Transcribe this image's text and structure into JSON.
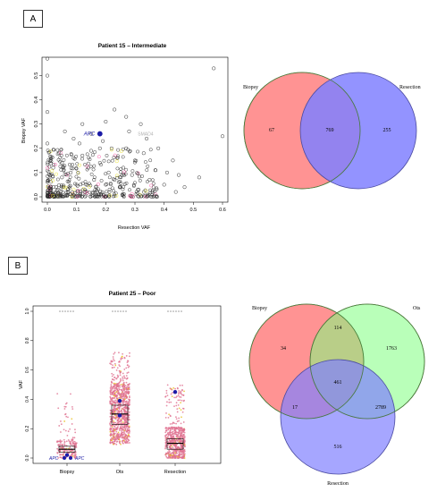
{
  "panels": [
    {
      "label": "A"
    },
    {
      "label": "B"
    }
  ],
  "chart_data": [
    {
      "type": "scatter",
      "title": "Patient 15 – Intermediate",
      "xlabel": "Resection VAF",
      "ylabel": "Biopsy VAF",
      "xlim": [
        0,
        0.6
      ],
      "ylim": [
        0,
        0.55
      ],
      "xticks": [
        "0.0",
        "0.1",
        "0.2",
        "0.3",
        "0.4",
        "0.5",
        "0.6"
      ],
      "yticks": [
        "0.0",
        "0.1",
        "0.2",
        "0.3",
        "0.4",
        "0.5"
      ],
      "annotations": [
        {
          "text": "APC",
          "x": 0.18,
          "y": 0.26,
          "color": "#1a1aa6"
        },
        {
          "text": "SMAD4",
          "x": 0.31,
          "y": 0.26,
          "color": "#b0b0b0"
        }
      ],
      "points": [
        [
          0.0,
          0.57
        ],
        [
          0.0,
          0.5
        ],
        [
          0.0,
          0.35
        ],
        [
          0.0,
          0.22
        ],
        [
          0.57,
          0.53
        ],
        [
          0.6,
          0.25
        ],
        [
          0.47,
          0.04
        ],
        [
          0.52,
          0.08
        ],
        [
          0.43,
          0.15
        ],
        [
          0.37,
          0.11
        ],
        [
          0.35,
          0.07
        ],
        [
          0.32,
          0.3
        ],
        [
          0.28,
          0.27
        ],
        [
          0.27,
          0.33
        ],
        [
          0.23,
          0.36
        ],
        [
          0.2,
          0.31
        ],
        [
          0.15,
          0.19
        ],
        [
          0.12,
          0.3
        ],
        [
          0.06,
          0.27
        ],
        [
          0.04,
          0.18
        ],
        [
          0.02,
          0.12
        ],
        [
          0.05,
          0.08
        ],
        [
          0.08,
          0.1
        ],
        [
          0.1,
          0.05
        ],
        [
          0.14,
          0.12
        ],
        [
          0.16,
          0.07
        ],
        [
          0.18,
          0.14
        ],
        [
          0.21,
          0.1
        ],
        [
          0.24,
          0.16
        ],
        [
          0.26,
          0.12
        ],
        [
          0.29,
          0.09
        ],
        [
          0.3,
          0.15
        ],
        [
          0.33,
          0.18
        ],
        [
          0.22,
          0.2
        ],
        [
          0.19,
          0.23
        ],
        [
          0.11,
          0.22
        ],
        [
          0.09,
          0.16
        ],
        [
          0.07,
          0.03
        ],
        [
          0.13,
          0.02
        ],
        [
          0.17,
          0.02
        ],
        [
          0.25,
          0.04
        ],
        [
          0.31,
          0.03
        ],
        [
          0.36,
          0.02
        ],
        [
          0.4,
          0.05
        ],
        [
          0.44,
          0.02
        ],
        [
          0.03,
          0.04
        ],
        [
          0.01,
          0.01
        ],
        [
          0.05,
          0.14
        ],
        [
          0.12,
          0.17
        ],
        [
          0.2,
          0.05
        ],
        [
          0.23,
          0.07
        ],
        [
          0.27,
          0.2
        ],
        [
          0.34,
          0.24
        ],
        [
          0.38,
          0.2
        ],
        [
          0.41,
          0.1
        ],
        [
          0.45,
          0.09
        ],
        [
          0.15,
          0.26
        ],
        [
          0.09,
          0.24
        ],
        [
          0.18,
          0.2
        ]
      ],
      "highlight": {
        "label": "APC",
        "x": 0.18,
        "y": 0.26,
        "color": "#1a1aa6"
      }
    },
    {
      "type": "venn",
      "sets": [
        "Biopsy",
        "Resection"
      ],
      "regions": {
        "biopsy_only": "67",
        "shared": "769",
        "resection_only": "255"
      },
      "colors": {
        "biopsy": "#ff8080",
        "resection": "#8080ff"
      }
    },
    {
      "type": "box",
      "title": "Patient 25 – Poor",
      "categories": [
        "Biopsy",
        "Ots",
        "Resection"
      ],
      "ylabel": "VAF",
      "ylim": [
        0,
        1.0
      ],
      "yticks": [
        "0.0",
        "0.2",
        "0.4",
        "0.6",
        "0.8",
        "1.0"
      ],
      "boxes": [
        {
          "q1": 0.04,
          "median": 0.06,
          "q3": 0.08,
          "spread": [
            0.0,
            0.45
          ]
        },
        {
          "q1": 0.23,
          "median": 0.3,
          "q3": 0.36,
          "spread": [
            0.1,
            0.72
          ]
        },
        {
          "q1": 0.06,
          "median": 0.1,
          "q3": 0.13,
          "spread": [
            0.0,
            0.5
          ]
        }
      ],
      "annotations": [
        {
          "text": "APC",
          "category": "Biopsy",
          "side": "left"
        },
        {
          "text": "APC",
          "category": "Biopsy",
          "side": "right"
        }
      ],
      "markers": [
        {
          "category": "Ots",
          "values": [
            0.39,
            0.29
          ],
          "color": "#1a1aa6"
        },
        {
          "category": "Resection",
          "values": [
            0.45
          ],
          "color": "#1a1aa6"
        },
        {
          "category": "Biopsy",
          "values": [
            0.02
          ],
          "color": "#1a1aa6"
        }
      ]
    },
    {
      "type": "venn",
      "sets": [
        "Biopsy",
        "Ots",
        "Resection"
      ],
      "regions": {
        "biopsy_only": "34",
        "ots_only": "1763",
        "resection_only": "516",
        "biopsy_ots": "114",
        "biopsy_resection": "17",
        "ots_resection": "2789",
        "all": "461"
      },
      "colors": {
        "biopsy": "#ff8080",
        "ots": "#80ff80",
        "resection": "#8080ff"
      }
    }
  ]
}
